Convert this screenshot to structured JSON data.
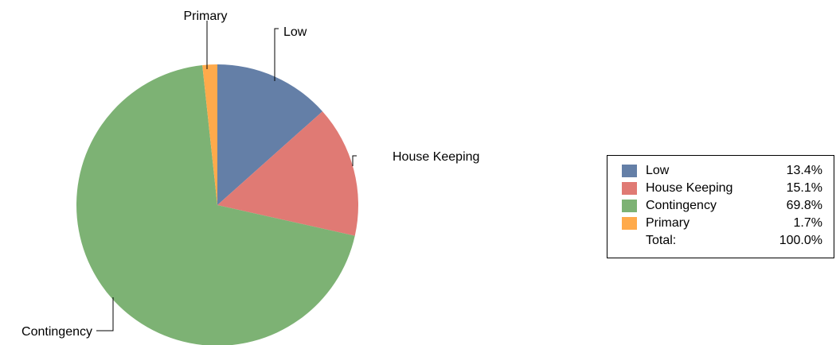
{
  "chart_data": {
    "type": "pie",
    "title": "",
    "slices": [
      {
        "label": "Low",
        "value": 13.4,
        "color": "#647FA7"
      },
      {
        "label": "House Keeping",
        "value": 15.1,
        "color": "#E07A74"
      },
      {
        "label": "Contingency",
        "value": 69.8,
        "color": "#7DB274"
      },
      {
        "label": "Primary",
        "value": 1.7,
        "color": "#FFAA4B"
      }
    ],
    "legend": {
      "placement": "right",
      "entries": [
        {
          "label": "Low",
          "value_text": "13.4%",
          "color": "#647FA7"
        },
        {
          "label": "House Keeping",
          "value_text": "15.1%",
          "color": "#E07A74"
        },
        {
          "label": "Contingency",
          "value_text": "69.8%",
          "color": "#7DB274"
        },
        {
          "label": "Primary",
          "value_text": "1.7%",
          "color": "#FFAA4B"
        }
      ],
      "total_label": "Total:",
      "total_value": "100.0%"
    }
  }
}
